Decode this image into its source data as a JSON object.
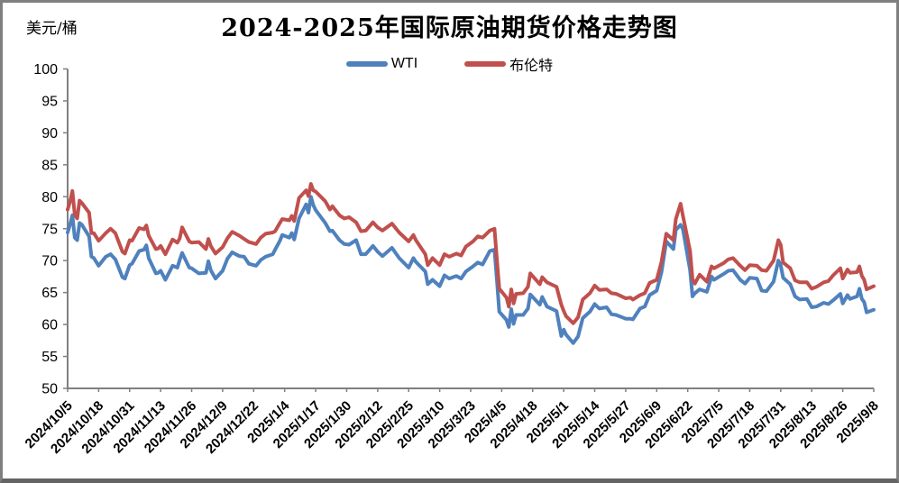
{
  "chart": {
    "title": "2024-2025年国际原油期货价格走势图",
    "y_unit_label": "美元/桶"
  },
  "chart_data": {
    "type": "line",
    "title": "2024-2025年国际原油期货价格走势图",
    "ylabel": "美元/桶",
    "xlabel": "",
    "ylim": [
      50,
      100
    ],
    "y_ticks": [
      100,
      95,
      90,
      85,
      80,
      75,
      70,
      65,
      60,
      55,
      50
    ],
    "grid": false,
    "legend_position": "top-center",
    "axis_color": "#808080",
    "x_tick_labels": [
      "2024/10/5",
      "2024/10/18",
      "2024/10/31",
      "2024/11/13",
      "2024/11/26",
      "2024/12/9",
      "2024/12/22",
      "2025/1/4",
      "2025/1/17",
      "2025/1/30",
      "2025/2/12",
      "2025/2/25",
      "2025/3/10",
      "2025/3/23",
      "2025/4/5",
      "2025/4/18",
      "2025/5/1",
      "2025/5/14",
      "2025/5/27",
      "2025/6/9",
      "2025/6/22",
      "2025/7/5",
      "2025/7/18",
      "2025/7/31",
      "2025/8/13",
      "2025/8/26",
      "2025/9/8"
    ],
    "x_tick_interval_days": 13,
    "x_day_span": 338,
    "series": [
      {
        "name": "WTI",
        "color": "#4F81BD",
        "column": 1
      },
      {
        "name": "布伦特",
        "color": "#C0504D",
        "column": 2
      }
    ],
    "columns": [
      "day_index",
      "WTI",
      "布伦特"
    ],
    "rows": [
      [
        0,
        74.4,
        78.0
      ],
      [
        1,
        75.6,
        79.2
      ],
      [
        2,
        77.1,
        80.9
      ],
      [
        3,
        73.6,
        77.2
      ],
      [
        4,
        73.2,
        76.6
      ],
      [
        5,
        75.9,
        79.4
      ],
      [
        6,
        75.6,
        79.0
      ],
      [
        9,
        73.8,
        77.5
      ],
      [
        10,
        70.6,
        74.3
      ],
      [
        11,
        70.4,
        74.3
      ],
      [
        13,
        69.2,
        73.1
      ],
      [
        16,
        70.6,
        74.3
      ],
      [
        18,
        71.0,
        75.0
      ],
      [
        20,
        70.2,
        74.3
      ],
      [
        23,
        67.4,
        71.4
      ],
      [
        24,
        67.2,
        71.1
      ],
      [
        26,
        69.3,
        73.2
      ],
      [
        27,
        69.5,
        73.1
      ],
      [
        30,
        71.5,
        75.1
      ],
      [
        32,
        71.7,
        74.9
      ],
      [
        33,
        72.4,
        75.5
      ],
      [
        34,
        70.4,
        73.9
      ],
      [
        37,
        68.0,
        71.8
      ],
      [
        38,
        68.1,
        71.9
      ],
      [
        39,
        68.4,
        72.3
      ],
      [
        41,
        67.0,
        71.0
      ],
      [
        44,
        69.2,
        73.3
      ],
      [
        46,
        68.9,
        72.8
      ],
      [
        47,
        70.1,
        73.5
      ],
      [
        48,
        71.2,
        75.2
      ],
      [
        51,
        68.9,
        73.0
      ],
      [
        52,
        68.8,
        72.8
      ],
      [
        55,
        68.0,
        72.9
      ],
      [
        58,
        68.1,
        71.8
      ],
      [
        59,
        69.9,
        73.4
      ],
      [
        60,
        68.5,
        72.3
      ],
      [
        62,
        67.2,
        71.1
      ],
      [
        65,
        68.4,
        72.1
      ],
      [
        67,
        70.3,
        73.5
      ],
      [
        69,
        71.3,
        74.5
      ],
      [
        72,
        70.7,
        73.9
      ],
      [
        74,
        70.6,
        73.4
      ],
      [
        76,
        69.5,
        72.9
      ],
      [
        79,
        69.2,
        72.6
      ],
      [
        81,
        70.1,
        73.6
      ],
      [
        83,
        70.6,
        74.2
      ],
      [
        86,
        71.0,
        74.4
      ],
      [
        87,
        71.7,
        74.6
      ],
      [
        89,
        73.1,
        75.9
      ],
      [
        90,
        74.0,
        76.5
      ],
      [
        93,
        73.6,
        76.3
      ],
      [
        94,
        74.3,
        77.0
      ],
      [
        95,
        73.3,
        76.2
      ],
      [
        97,
        76.6,
        79.8
      ],
      [
        100,
        78.8,
        81.0
      ],
      [
        101,
        77.5,
        80.1
      ],
      [
        102,
        80.0,
        82.0
      ],
      [
        103,
        78.7,
        81.0
      ],
      [
        104,
        77.9,
        80.8
      ],
      [
        108,
        75.9,
        79.3
      ],
      [
        110,
        74.6,
        78.0
      ],
      [
        111,
        74.7,
        78.5
      ],
      [
        114,
        73.2,
        77.1
      ],
      [
        116,
        72.6,
        76.6
      ],
      [
        118,
        72.5,
        76.8
      ],
      [
        121,
        73.2,
        76.0
      ],
      [
        123,
        71.0,
        74.6
      ],
      [
        125,
        71.0,
        74.7
      ],
      [
        128,
        72.3,
        76.0
      ],
      [
        130,
        71.4,
        75.2
      ],
      [
        132,
        70.7,
        74.7
      ],
      [
        136,
        72.0,
        75.8
      ],
      [
        139,
        70.4,
        74.4
      ],
      [
        143,
        68.9,
        73.0
      ],
      [
        145,
        70.4,
        74.0
      ],
      [
        146,
        69.8,
        73.2
      ],
      [
        150,
        68.3,
        71.0
      ],
      [
        151,
        66.3,
        69.3
      ],
      [
        153,
        67.0,
        70.4
      ],
      [
        156,
        66.0,
        69.3
      ],
      [
        158,
        67.7,
        71.0
      ],
      [
        160,
        67.2,
        70.6
      ],
      [
        163,
        67.6,
        71.1
      ],
      [
        165,
        67.2,
        70.8
      ],
      [
        167,
        68.3,
        72.2
      ],
      [
        170,
        69.1,
        73.0
      ],
      [
        172,
        69.7,
        73.8
      ],
      [
        174,
        69.4,
        73.6
      ],
      [
        177,
        71.5,
        74.7
      ],
      [
        179,
        71.7,
        75.0
      ],
      [
        180,
        66.9,
        70.1
      ],
      [
        181,
        62.0,
        65.6
      ],
      [
        184,
        60.7,
        64.2
      ],
      [
        185,
        59.6,
        62.8
      ],
      [
        186,
        62.4,
        65.5
      ],
      [
        187,
        60.1,
        63.3
      ],
      [
        188,
        61.5,
        64.8
      ],
      [
        191,
        61.5,
        64.9
      ],
      [
        193,
        62.5,
        65.9
      ],
      [
        194,
        64.7,
        68.0
      ],
      [
        198,
        63.1,
        66.3
      ],
      [
        199,
        64.3,
        67.4
      ],
      [
        201,
        62.8,
        66.6
      ],
      [
        205,
        62.1,
        65.9
      ],
      [
        207,
        58.2,
        63.1
      ],
      [
        208,
        59.2,
        62.1
      ],
      [
        209,
        58.4,
        61.3
      ],
      [
        212,
        57.1,
        60.2
      ],
      [
        214,
        58.1,
        61.1
      ],
      [
        216,
        61.0,
        63.9
      ],
      [
        219,
        62.0,
        64.9
      ],
      [
        221,
        63.2,
        66.1
      ],
      [
        223,
        62.5,
        65.4
      ],
      [
        226,
        62.7,
        65.5
      ],
      [
        228,
        61.6,
        64.9
      ],
      [
        230,
        61.5,
        64.8
      ],
      [
        234,
        60.9,
        64.1
      ],
      [
        236,
        60.9,
        64.2
      ],
      [
        237,
        60.8,
        63.9
      ],
      [
        240,
        62.5,
        64.6
      ],
      [
        242,
        62.8,
        64.9
      ],
      [
        244,
        64.6,
        66.5
      ],
      [
        247,
        65.3,
        67.0
      ],
      [
        249,
        68.2,
        69.8
      ],
      [
        251,
        73.0,
        74.2
      ],
      [
        254,
        71.8,
        73.2
      ],
      [
        255,
        74.8,
        76.5
      ],
      [
        257,
        75.6,
        78.9
      ],
      [
        258,
        74.9,
        77.0
      ],
      [
        261,
        68.5,
        71.5
      ],
      [
        262,
        64.4,
        67.1
      ],
      [
        263,
        64.9,
        66.4
      ],
      [
        265,
        65.5,
        67.8
      ],
      [
        268,
        65.1,
        66.7
      ],
      [
        270,
        67.5,
        69.1
      ],
      [
        271,
        67.0,
        68.8
      ],
      [
        275,
        67.9,
        69.6
      ],
      [
        277,
        68.4,
        70.2
      ],
      [
        279,
        68.5,
        70.4
      ],
      [
        282,
        67.0,
        69.2
      ],
      [
        284,
        66.4,
        68.5
      ],
      [
        286,
        67.3,
        69.3
      ],
      [
        289,
        67.2,
        69.2
      ],
      [
        291,
        65.3,
        68.5
      ],
      [
        293,
        65.2,
        68.4
      ],
      [
        296,
        66.7,
        70.0
      ],
      [
        298,
        70.0,
        73.2
      ],
      [
        299,
        69.3,
        72.5
      ],
      [
        300,
        67.3,
        69.7
      ],
      [
        303,
        66.3,
        68.8
      ],
      [
        305,
        64.4,
        66.9
      ],
      [
        307,
        63.9,
        66.6
      ],
      [
        310,
        64.0,
        66.6
      ],
      [
        312,
        62.7,
        65.6
      ],
      [
        314,
        62.8,
        65.9
      ],
      [
        317,
        63.4,
        66.6
      ],
      [
        319,
        63.2,
        66.8
      ],
      [
        321,
        63.8,
        67.7
      ],
      [
        324,
        64.8,
        68.8
      ],
      [
        325,
        63.3,
        67.2
      ],
      [
        327,
        64.6,
        68.6
      ],
      [
        328,
        64.0,
        68.1
      ],
      [
        331,
        64.4,
        68.2
      ],
      [
        332,
        65.6,
        69.1
      ],
      [
        333,
        64.0,
        67.6
      ],
      [
        334,
        63.5,
        67.0
      ],
      [
        335,
        61.9,
        65.5
      ],
      [
        338,
        62.3,
        66.0
      ]
    ]
  }
}
